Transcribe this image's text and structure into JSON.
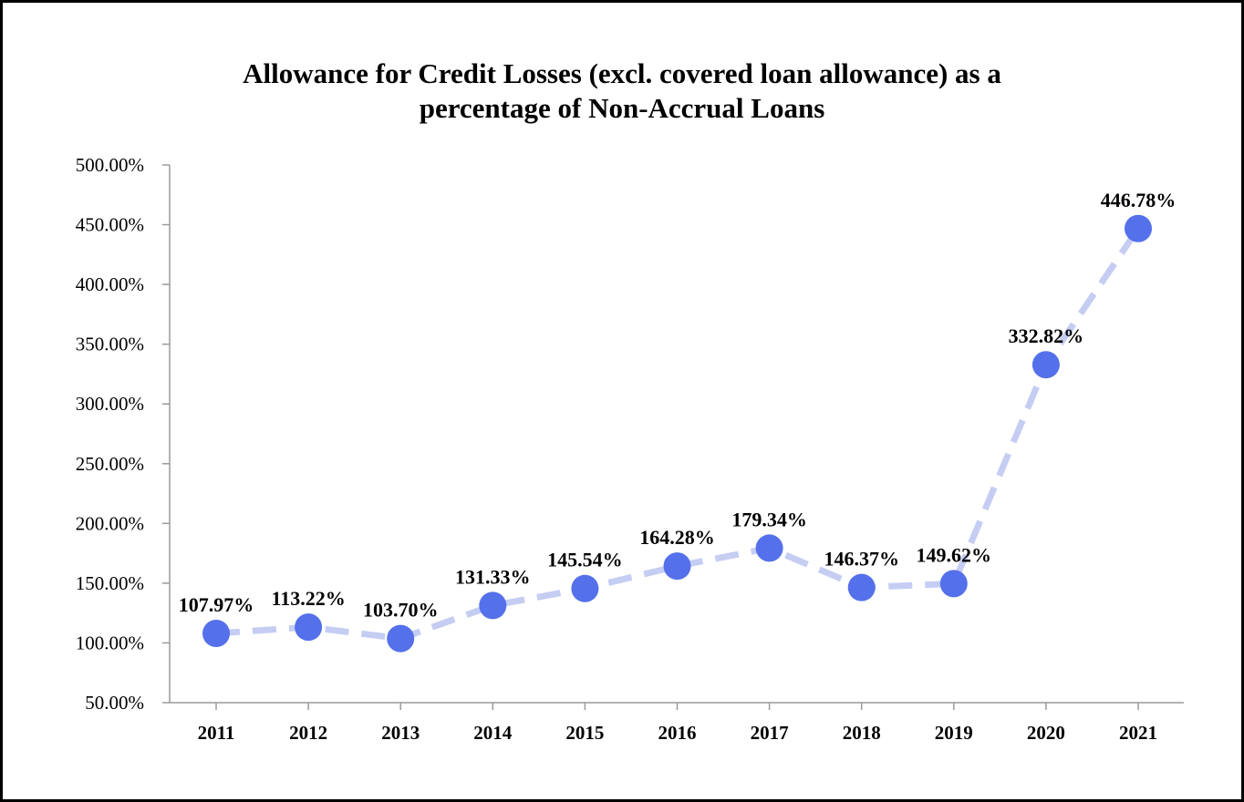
{
  "chart_data": {
    "type": "line",
    "title_line1": "Allowance for Credit Losses (excl. covered loan allowance) as a",
    "title_line2": "percentage of Non-Accrual Loans",
    "title": "Allowance for Credit Losses (excl. covered loan allowance) as a percentage of Non-Accrual Loans",
    "xlabel": "",
    "ylabel": "",
    "categories": [
      "2011",
      "2012",
      "2013",
      "2014",
      "2015",
      "2016",
      "2017",
      "2018",
      "2019",
      "2020",
      "2021"
    ],
    "values": [
      107.97,
      113.22,
      103.7,
      131.33,
      145.54,
      164.28,
      179.34,
      146.37,
      149.62,
      332.82,
      446.78
    ],
    "data_labels": [
      "107.97%",
      "113.22%",
      "103.70%",
      "131.33%",
      "145.54%",
      "164.28%",
      "179.34%",
      "146.37%",
      "149.62%",
      "332.82%",
      "446.78%"
    ],
    "ylim": [
      50,
      500
    ],
    "yticks": [
      50,
      100,
      150,
      200,
      250,
      300,
      350,
      400,
      450,
      500
    ],
    "ytick_labels": [
      "50.00%",
      "100.00%",
      "150.00%",
      "200.00%",
      "250.00%",
      "300.00%",
      "350.00%",
      "400.00%",
      "450.00%",
      "500.00%"
    ],
    "grid": false,
    "legend": "none",
    "line_style": "dashed",
    "colors": {
      "line": "#c5cdf3",
      "marker": "#5470ea",
      "axis": "#9a9a9a"
    }
  }
}
